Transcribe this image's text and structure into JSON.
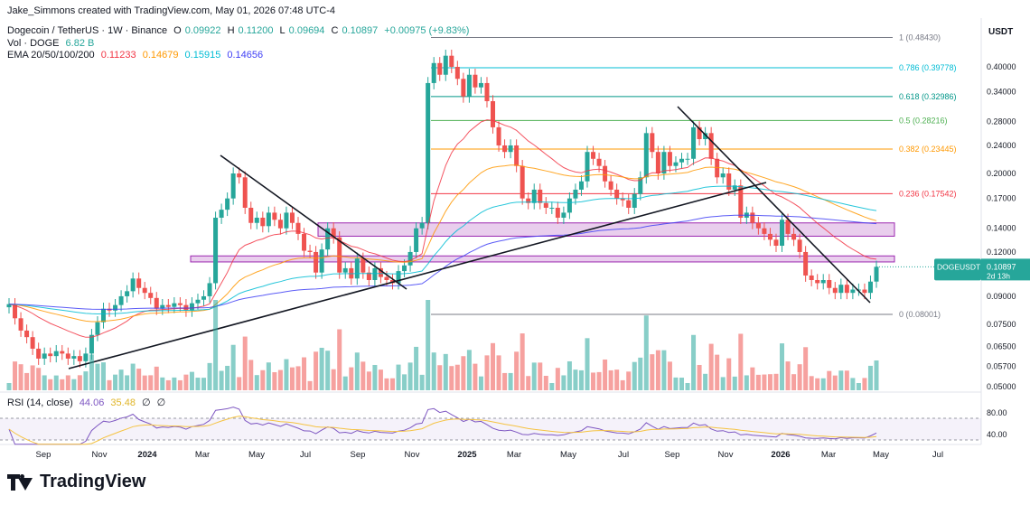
{
  "attribution": "Jake_Simmons created with TradingView.com, May 01, 2026 07:48 UTC-4",
  "symbol_line": {
    "name": "Dogecoin / TetherUS · 1W · Binance",
    "open_label": "O",
    "open": "0.09922",
    "high_label": "H",
    "high": "0.11200",
    "low_label": "L",
    "low": "0.09694",
    "close_label": "C",
    "close": "0.10897",
    "change": "+0.00975 (+9.83%)"
  },
  "vol_line": {
    "label": "Vol · DOGE",
    "value": "6.82 B"
  },
  "ema_line": {
    "label": "EMA 20/50/100/200",
    "values": [
      "0.11233",
      "0.14679",
      "0.15915",
      "0.14656"
    ],
    "colors": [
      "#f23645",
      "#ff9800",
      "#00bcd4",
      "#3f3ff5"
    ]
  },
  "rsi_line": {
    "label": "RSI (14, close)",
    "value": "44.06",
    "ma": "35.48",
    "icon1": "∅",
    "icon2": "∅"
  },
  "currency": "USDT",
  "ticker_badge": {
    "label": "DOGEUSDT",
    "price": "0.10897",
    "countdown": "2d 13h"
  },
  "brand": "TradingView",
  "colors": {
    "up": "#26a69a",
    "down": "#ef5350",
    "rsi": "#7e57c2",
    "rsi_ma": "#f5c342",
    "zone": "#9c27b0"
  },
  "chart_data": {
    "type": "candlestick",
    "scale": "log",
    "price_axis_ticks": [
      0.4,
      0.34,
      0.28,
      0.24,
      0.2,
      0.17,
      0.14,
      0.12,
      0.09,
      0.075,
      0.065,
      0.057,
      0.05
    ],
    "price_axis_labels": [
      "0.40000",
      "0.34000",
      "0.28000",
      "0.24000",
      "0.20000",
      "0.17000",
      "0.14000",
      "0.12000",
      "0.09000",
      "0.07500",
      "0.06500",
      "0.05700",
      "0.05000"
    ],
    "time_labels": [
      "Sep",
      "Nov",
      "2024",
      "Mar",
      "May",
      "Jul",
      "Sep",
      "Nov",
      "2025",
      "Mar",
      "May",
      "Jul",
      "Sep",
      "Nov",
      "2026",
      "Mar",
      "May",
      "Jul"
    ],
    "fib_levels": [
      {
        "label": "1 (0.48430)",
        "value": 0.4843,
        "color": "#787b86"
      },
      {
        "label": "0.786 (0.39778)",
        "value": 0.39778,
        "color": "#00bcd4"
      },
      {
        "label": "0.618 (0.32986)",
        "value": 0.32986,
        "color": "#009688"
      },
      {
        "label": "0.5 (0.28216)",
        "value": 0.28216,
        "color": "#4caf50"
      },
      {
        "label": "0.382 (0.23445)",
        "value": 0.23445,
        "color": "#ff9800"
      },
      {
        "label": "0.236 (0.17542)",
        "value": 0.17542,
        "color": "#f23645"
      },
      {
        "label": "0 (0.08001)",
        "value": 0.08001,
        "color": "#787b86"
      }
    ],
    "zones": [
      {
        "low": 0.133,
        "high": 0.145
      },
      {
        "low": 0.1125,
        "high": 0.117
      }
    ],
    "closes": [
      0.0855,
      0.078,
      0.072,
      0.069,
      0.064,
      0.06,
      0.062,
      0.061,
      0.063,
      0.062,
      0.06,
      0.061,
      0.059,
      0.062,
      0.07,
      0.076,
      0.083,
      0.082,
      0.085,
      0.09,
      0.093,
      0.101,
      0.095,
      0.092,
      0.089,
      0.083,
      0.085,
      0.084,
      0.086,
      0.085,
      0.082,
      0.086,
      0.088,
      0.09,
      0.098,
      0.15,
      0.158,
      0.17,
      0.2,
      0.195,
      0.16,
      0.145,
      0.15,
      0.142,
      0.155,
      0.148,
      0.14,
      0.155,
      0.145,
      0.135,
      0.121,
      0.12,
      0.105,
      0.122,
      0.14,
      0.132,
      0.105,
      0.108,
      0.101,
      0.115,
      0.105,
      0.1,
      0.108,
      0.102,
      0.1,
      0.098,
      0.106,
      0.11,
      0.12,
      0.14,
      0.145,
      0.36,
      0.41,
      0.38,
      0.43,
      0.4,
      0.37,
      0.33,
      0.38,
      0.35,
      0.36,
      0.32,
      0.27,
      0.24,
      0.23,
      0.24,
      0.21,
      0.17,
      0.165,
      0.18,
      0.165,
      0.16,
      0.16,
      0.15,
      0.155,
      0.17,
      0.18,
      0.19,
      0.23,
      0.22,
      0.21,
      0.19,
      0.18,
      0.17,
      0.168,
      0.16,
      0.175,
      0.195,
      0.26,
      0.23,
      0.2,
      0.23,
      0.21,
      0.215,
      0.22,
      0.22,
      0.27,
      0.25,
      0.26,
      0.22,
      0.195,
      0.2,
      0.18,
      0.185,
      0.15,
      0.155,
      0.145,
      0.14,
      0.135,
      0.13,
      0.125,
      0.148,
      0.135,
      0.13,
      0.12,
      0.103,
      0.1,
      0.098,
      0.1,
      0.095,
      0.092,
      0.097,
      0.092,
      0.094,
      0.094,
      0.092,
      0.099,
      0.109
    ],
    "rsi_axis_labels": [
      "80.00",
      "40.00"
    ]
  }
}
